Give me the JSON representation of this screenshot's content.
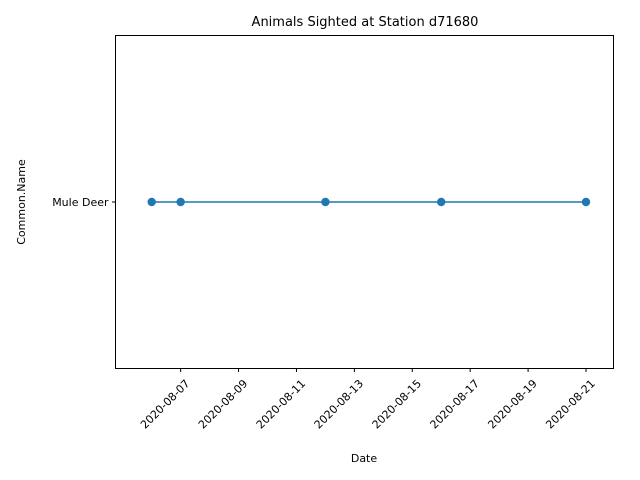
{
  "chart_data": {
    "type": "line",
    "title": "Animals Sighted at Station d71680",
    "xlabel": "Date",
    "ylabel": "Common.Name",
    "x_ticks": [
      "2020-08-07",
      "2020-08-09",
      "2020-08-11",
      "2020-08-13",
      "2020-08-15",
      "2020-08-17",
      "2020-08-19",
      "2020-08-21"
    ],
    "y_categories": [
      "Mule Deer"
    ],
    "series": [
      {
        "x": [
          "2020-08-06",
          "2020-08-07",
          "2020-08-12",
          "2020-08-16",
          "2020-08-21"
        ],
        "y": [
          "Mule Deer",
          "Mule Deer",
          "Mule Deer",
          "Mule Deer",
          "Mule Deer"
        ],
        "color": "#1f77b4",
        "marker": "circle"
      }
    ],
    "xlim": [
      "2020-08-05",
      "2020-08-22"
    ],
    "grid": false,
    "legend": "none"
  }
}
